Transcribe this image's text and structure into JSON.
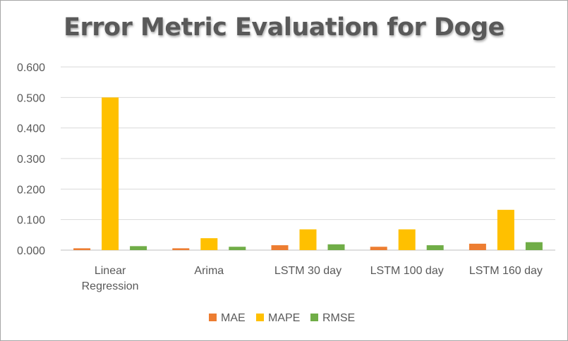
{
  "chart_data": {
    "type": "bar",
    "title": "Error Metric Evaluation for Doge",
    "categories": [
      [
        "Linear",
        "Regression"
      ],
      [
        "Arima"
      ],
      [
        "LSTM 30 day"
      ],
      [
        "LSTM 100 day"
      ],
      [
        "LSTM 160 day"
      ]
    ],
    "series": [
      {
        "name": "MAE",
        "color": "#ed7d31",
        "values": [
          0.006,
          0.006,
          0.016,
          0.011,
          0.021
        ]
      },
      {
        "name": "MAPE",
        "color": "#ffc000",
        "values": [
          0.5,
          0.039,
          0.068,
          0.068,
          0.132
        ]
      },
      {
        "name": "RMSE",
        "color": "#70ad47",
        "values": [
          0.013,
          0.011,
          0.019,
          0.016,
          0.026
        ]
      }
    ],
    "yticks": [
      "0.000",
      "0.100",
      "0.200",
      "0.300",
      "0.400",
      "0.500",
      "0.600"
    ],
    "ylim": [
      0,
      0.6
    ],
    "grid": true,
    "legend": "bottom"
  }
}
